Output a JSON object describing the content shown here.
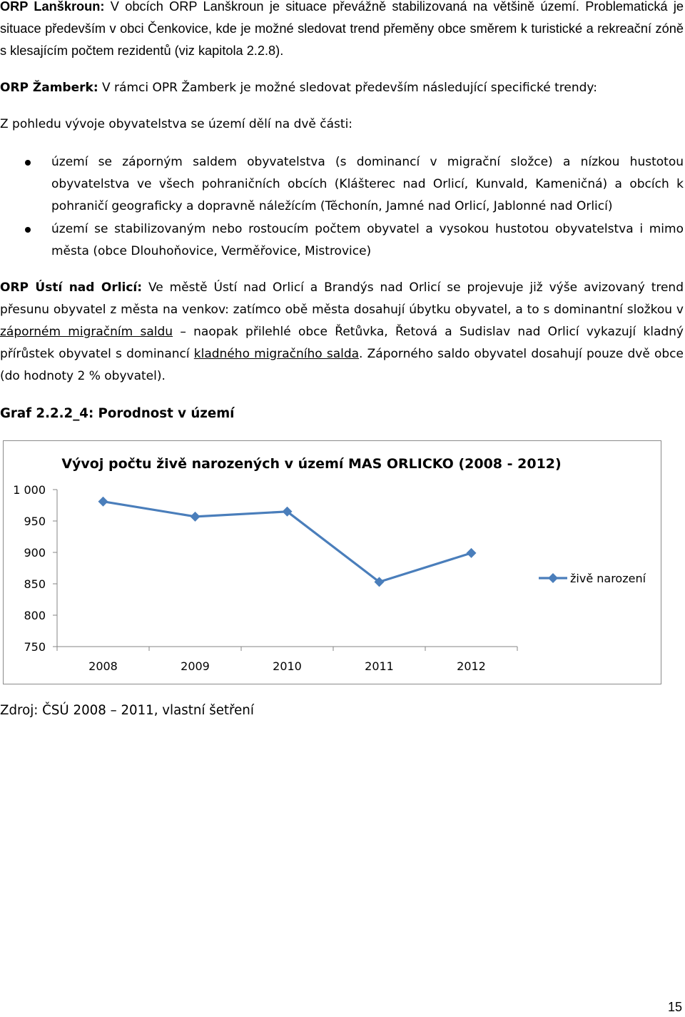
{
  "paragraph1": {
    "lead": "ORP Lanškroun:",
    "text": " V obcích ORP Lanškroun je situace převážně stabilizovaná na většině území. Problematická je situace především v obci Čenkovice, kde je možné sledovat trend přeměny obce směrem k turistické a rekreační zóně s klesajícím počtem rezidentů (viz kapitola 2.2.8)."
  },
  "paragraph2": {
    "lead": "ORP Žamberk:",
    "text": " V rámci OPR Žamberk je možné sledovat především následující specifické trendy:"
  },
  "paragraph3": "Z pohledu vývoje obyvatelstva se území dělí na dvě části:",
  "bullets": [
    "území se záporným saldem obyvatelstva (s dominancí v migrační složce) a nízkou hustotou obyvatelstva ve všech pohraničních obcích (Klášterec nad Orlicí, Kunvald, Kameničná) a obcích k pohraničí geograficky a dopravně náležícím (Těchonín, Jamné nad Orlicí, Jablonné nad Orlicí)",
    "území se stabilizovaným nebo rostoucím počtem obyvatel a vysokou hustotou obyvatelstva i mimo města (obce Dlouhoňovice, Verměřovice, Mistrovice)"
  ],
  "paragraph4": {
    "lead": "ORP Ústí nad Orlicí:",
    "t1": " Ve městě Ústí nad Orlicí a Brandýs nad Orlicí se projevuje již výše avizovaný trend přesunu obyvatel z města na venkov: zatímco obě města dosahují úbytku obyvatel, a to s dominantní složkou v ",
    "u1": "záporném migračním saldu",
    "t2": " – naopak přilehlé obce Řetůvka, Řetová a Sudislav nad Orlicí vykazují kladný přírůstek obyvatel s dominancí ",
    "u2": "kladného migračního salda",
    "t3": ". Záporného saldo obyvatel dosahují pouze dvě obce (do hodnoty 2 % obyvatel)."
  },
  "graph_caption": "Graf 2.2.2_4: Porodnost v území",
  "chart_data": {
    "type": "line",
    "title": "Vývoj počtu živě narozených v území MAS ORLICKO (2008 - 2012)",
    "categories": [
      "2008",
      "2009",
      "2010",
      "2011",
      "2012"
    ],
    "series": [
      {
        "name": "živě narození",
        "values": [
          981,
          957,
          965,
          853,
          899
        ],
        "color": "#4a7ebb"
      }
    ],
    "ylim": [
      750,
      1000
    ],
    "yticks": [
      750,
      800,
      850,
      900,
      950,
      1000
    ],
    "ytick_labels": [
      "750",
      "800",
      "850",
      "900",
      "950",
      "1 000"
    ],
    "xlabel": "",
    "ylabel": "",
    "grid": false,
    "legend": "right",
    "marker": "diamond"
  },
  "source": "Zdroj: ČSÚ 2008 – 2011, vlastní šetření",
  "page_number": "15"
}
